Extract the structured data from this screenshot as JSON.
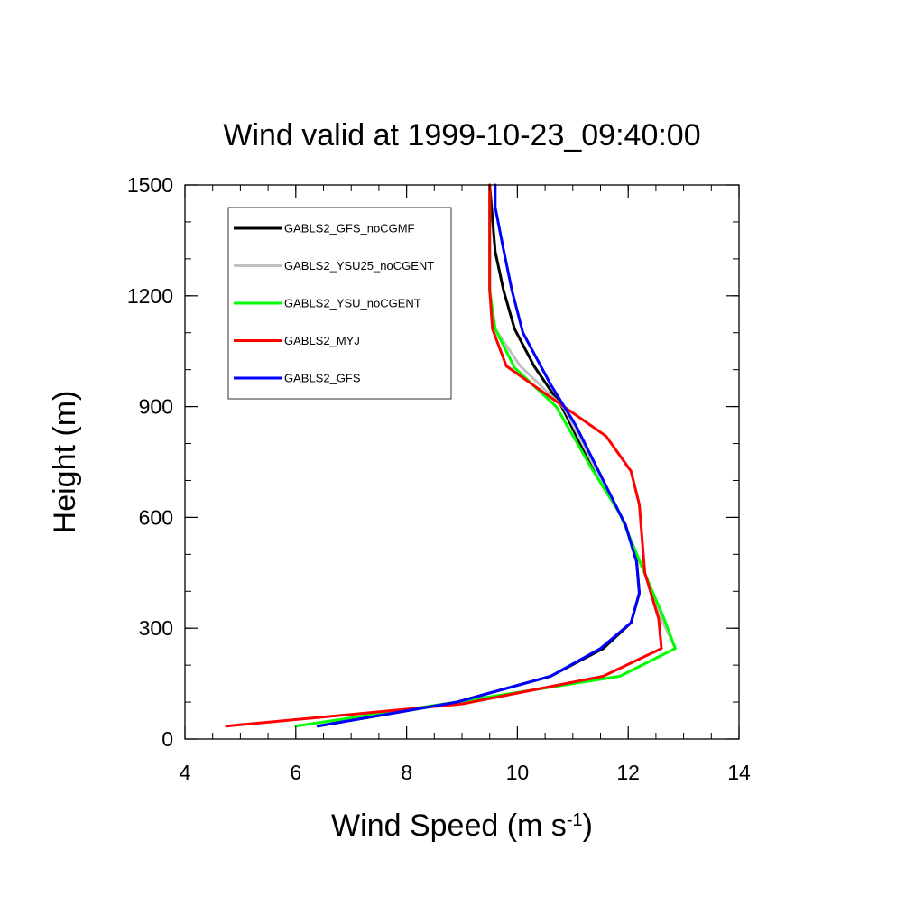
{
  "chart_data": {
    "type": "line",
    "title": "Wind valid at 1999-10-23_09:40:00",
    "xlabel_main": "Wind Speed (m s",
    "xlabel_sup": "-1",
    "xlabel_end": ")",
    "ylabel": "Height (m)",
    "xlim": [
      4,
      14
    ],
    "ylim": [
      0,
      1500
    ],
    "xticks": [
      4,
      6,
      8,
      10,
      12,
      14
    ],
    "xtick_labels": [
      "4",
      "6",
      "8",
      "10",
      "12",
      "14"
    ],
    "yticks": [
      0,
      300,
      600,
      900,
      1200,
      1500
    ],
    "ytick_labels": [
      "0",
      "300",
      "600",
      "900",
      "1200",
      "1500"
    ],
    "legend_position": "top-left",
    "series": [
      {
        "name": "GABLS2_GFS_noCGMF",
        "color": "#000000",
        "points": [
          [
            6.4,
            35
          ],
          [
            8.9,
            100
          ],
          [
            10.6,
            170
          ],
          [
            11.55,
            245
          ],
          [
            12.05,
            315
          ],
          [
            12.2,
            395
          ],
          [
            12.15,
            485
          ],
          [
            11.95,
            580
          ],
          [
            11.6,
            680
          ],
          [
            11.2,
            780
          ],
          [
            10.8,
            900
          ],
          [
            10.3,
            1010
          ],
          [
            9.95,
            1110
          ],
          [
            9.75,
            1215
          ],
          [
            9.6,
            1320
          ],
          [
            9.5,
            1500
          ]
        ]
      },
      {
        "name": "GABLS2_YSU25_noCGENT",
        "color": "#c0c0c0",
        "points": [
          [
            6.0,
            35
          ],
          [
            8.9,
            100
          ],
          [
            11.85,
            170
          ],
          [
            12.85,
            245
          ],
          [
            12.6,
            325
          ],
          [
            12.35,
            430
          ],
          [
            12.1,
            520
          ],
          [
            11.85,
            610
          ],
          [
            11.45,
            720
          ],
          [
            10.85,
            895
          ],
          [
            10.05,
            1010
          ],
          [
            9.6,
            1110
          ],
          [
            9.5,
            1215
          ],
          [
            9.5,
            1500
          ]
        ]
      },
      {
        "name": "GABLS2_YSU_noCGENT",
        "color": "#00ff00",
        "points": [
          [
            6.0,
            35
          ],
          [
            8.9,
            100
          ],
          [
            11.85,
            170
          ],
          [
            12.85,
            245
          ],
          [
            12.65,
            325
          ],
          [
            12.35,
            430
          ],
          [
            12.1,
            520
          ],
          [
            11.85,
            610
          ],
          [
            11.35,
            730
          ],
          [
            10.7,
            900
          ],
          [
            9.95,
            1005
          ],
          [
            9.6,
            1110
          ],
          [
            9.5,
            1215
          ],
          [
            9.5,
            1500
          ]
        ]
      },
      {
        "name": "GABLS2_MYJ",
        "color": "#ff0000",
        "points": [
          [
            4.75,
            35
          ],
          [
            9.0,
            95
          ],
          [
            11.55,
            170
          ],
          [
            12.6,
            245
          ],
          [
            12.55,
            325
          ],
          [
            12.3,
            450
          ],
          [
            12.2,
            635
          ],
          [
            12.05,
            725
          ],
          [
            11.6,
            820
          ],
          [
            10.55,
            930
          ],
          [
            9.8,
            1010
          ],
          [
            9.55,
            1110
          ],
          [
            9.5,
            1215
          ],
          [
            9.5,
            1500
          ]
        ]
      },
      {
        "name": "GABLS2_GFS",
        "color": "#0000ff",
        "points": [
          [
            6.4,
            35
          ],
          [
            8.9,
            100
          ],
          [
            10.6,
            170
          ],
          [
            11.5,
            245
          ],
          [
            12.05,
            315
          ],
          [
            12.2,
            395
          ],
          [
            12.15,
            480
          ],
          [
            11.95,
            580
          ],
          [
            11.55,
            700
          ],
          [
            11.05,
            850
          ],
          [
            10.6,
            960
          ],
          [
            10.1,
            1100
          ],
          [
            9.9,
            1215
          ],
          [
            9.75,
            1325
          ],
          [
            9.6,
            1440
          ],
          [
            9.6,
            1500
          ]
        ]
      }
    ]
  }
}
